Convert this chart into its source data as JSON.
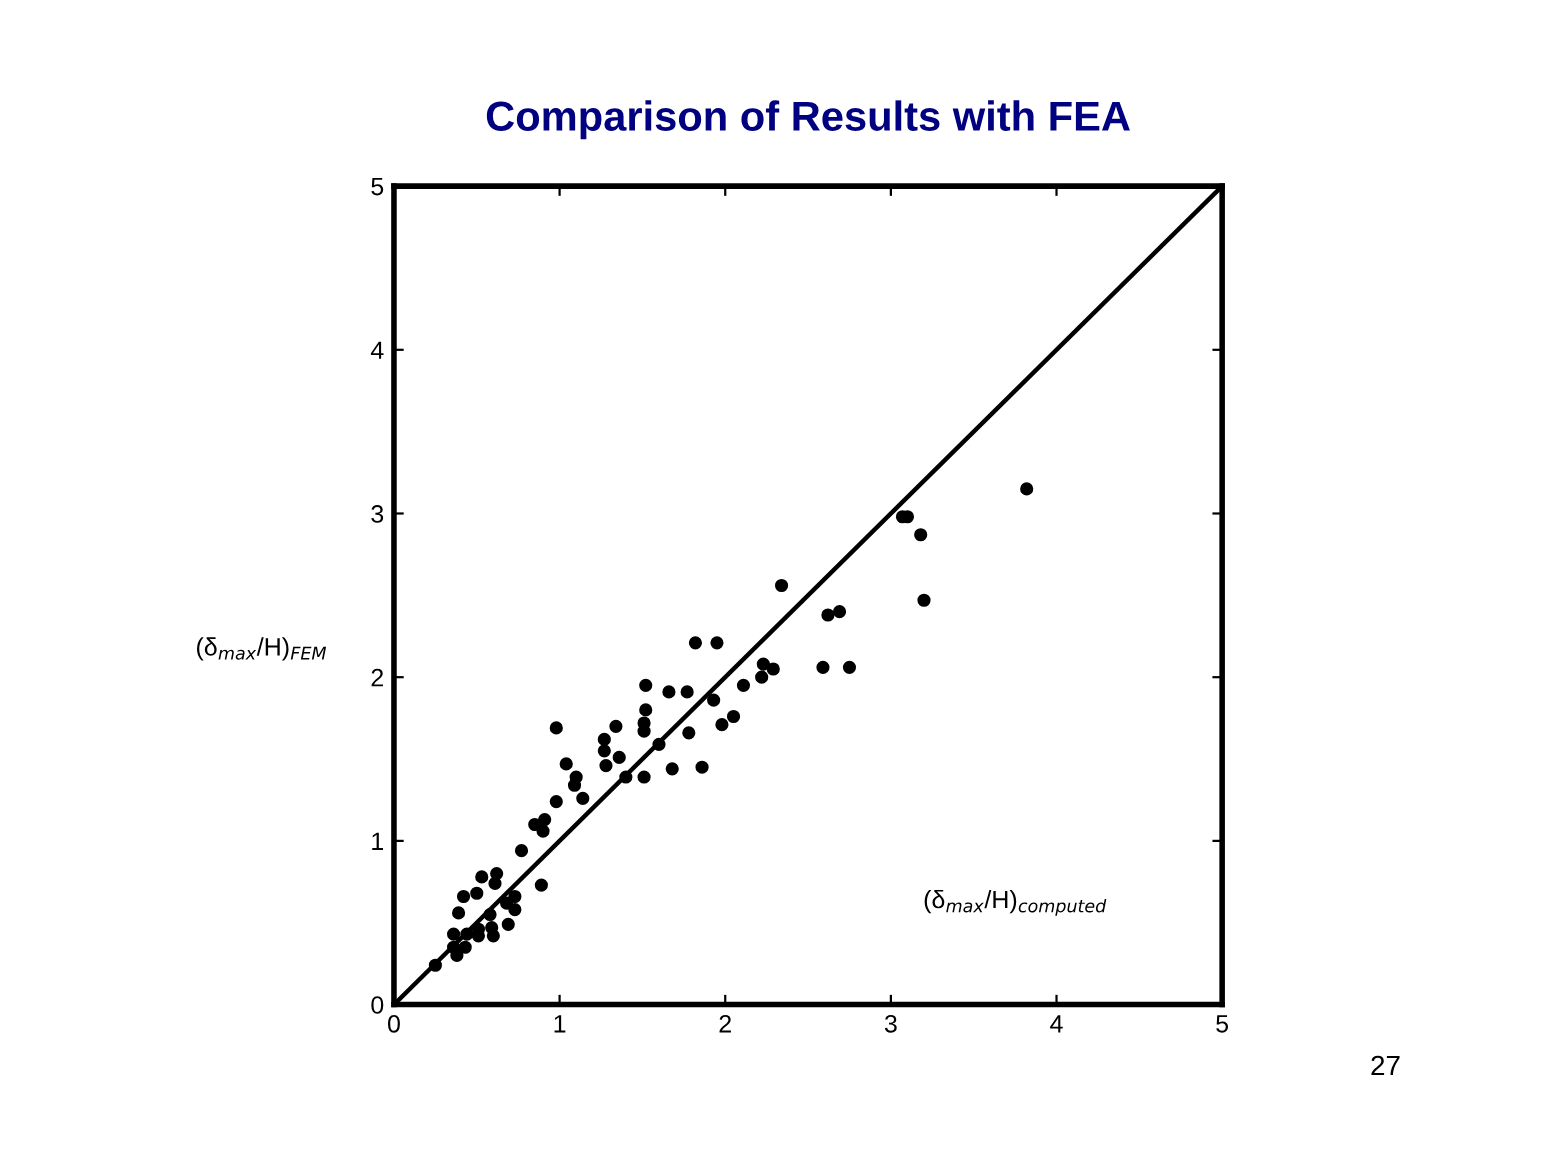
{
  "chart_data": {
    "type": "scatter",
    "title": "Comparison of Results with FEA",
    "xlabel": "(δ$_{max}$/H)$_{computed}$",
    "ylabel": "(δ$_{max}$/H)$_{FEM}$",
    "annotations": [
      "27"
    ],
    "xlim": [
      0,
      5
    ],
    "ylim": [
      0,
      5
    ],
    "xticks": [
      0,
      1,
      2,
      3,
      4,
      5
    ],
    "yticks": [
      0,
      1,
      2,
      3,
      4,
      5
    ],
    "grid": false,
    "legend": false,
    "marker": "circle",
    "series": [
      {
        "color": "#000000",
        "x": [
          0.25,
          0.36,
          0.36,
          0.38,
          0.43,
          0.44,
          0.39,
          0.42,
          0.5,
          0.53,
          0.62,
          0.61,
          0.51,
          0.51,
          0.59,
          0.6,
          0.58,
          0.69,
          0.68,
          0.73,
          0.73,
          0.77,
          0.89,
          0.85,
          0.91,
          0.9,
          0.98,
          0.98,
          1.04,
          1.09,
          1.1,
          1.14,
          1.27,
          1.27,
          1.28,
          1.34,
          1.36,
          1.4,
          1.51,
          1.52,
          1.52,
          1.51,
          1.51,
          1.6,
          1.66,
          1.77,
          1.68,
          1.86,
          1.78,
          1.82,
          1.95,
          1.93,
          1.98,
          2.05,
          2.11,
          2.23,
          2.22,
          2.29,
          2.59,
          2.75,
          2.34,
          2.62,
          2.69,
          3.07,
          3.1,
          3.18,
          3.2,
          3.82
        ],
        "values": [
          0.24,
          0.43,
          0.35,
          0.3,
          0.35,
          0.43,
          0.56,
          0.66,
          0.68,
          0.78,
          0.8,
          0.74,
          0.46,
          0.42,
          0.47,
          0.42,
          0.55,
          0.49,
          0.62,
          0.66,
          0.58,
          0.94,
          0.73,
          1.1,
          1.13,
          1.06,
          1.69,
          1.24,
          1.47,
          1.34,
          1.39,
          1.26,
          1.62,
          1.55,
          1.46,
          1.7,
          1.51,
          1.39,
          1.39,
          1.95,
          1.8,
          1.72,
          1.67,
          1.59,
          1.91,
          1.91,
          1.44,
          1.45,
          1.66,
          2.21,
          2.21,
          1.86,
          1.71,
          1.76,
          1.95,
          2.08,
          2.0,
          2.05,
          2.06,
          2.06,
          2.56,
          2.38,
          2.4,
          2.98,
          2.98,
          2.87,
          2.47,
          3.15
        ]
      },
      {
        "type": "line",
        "color": "#000000",
        "x": [
          0,
          5
        ],
        "values": [
          0,
          5
        ],
        "marker": "none",
        "line_style": "solid"
      }
    ]
  }
}
